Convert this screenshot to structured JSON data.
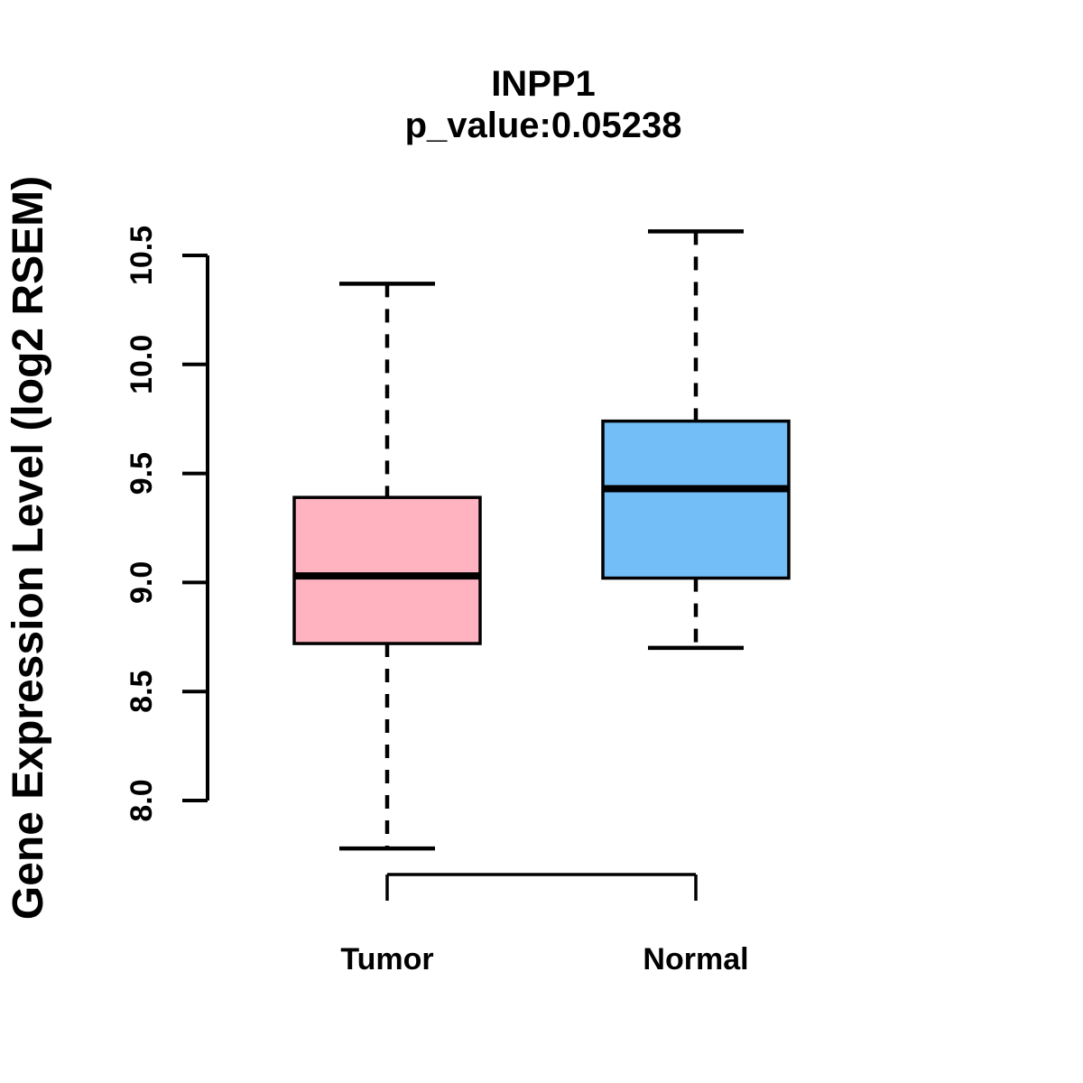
{
  "figure": {
    "title": "INPP1",
    "subtitle": "p_value:0.05238",
    "ylabel": "Gene Expression Level (log2 RSEM)"
  },
  "chart_data": {
    "type": "boxplot",
    "title": "INPP1",
    "subtitle": "p_value:0.05238",
    "ylabel": "Gene Expression Level (log2 RSEM)",
    "xlabel": "",
    "ylim": [
      8.0,
      10.5
    ],
    "yticks": [
      8.0,
      8.5,
      9.0,
      9.5,
      10.0,
      10.5
    ],
    "ytick_labels": [
      "8.0",
      "8.5",
      "9.0",
      "9.5",
      "10.0",
      "10.5"
    ],
    "categories": [
      "Tumor",
      "Normal"
    ],
    "series": [
      {
        "name": "Tumor",
        "lower_whisker": 7.78,
        "q1": 8.72,
        "median": 9.03,
        "q3": 9.39,
        "upper_whisker": 10.37,
        "fill": "#FFB3C1"
      },
      {
        "name": "Normal",
        "lower_whisker": 8.7,
        "q1": 9.02,
        "median": 9.43,
        "q3": 9.74,
        "upper_whisker": 10.61,
        "fill": "#73BEF7"
      }
    ],
    "colors": {
      "stroke": "#000000",
      "background": "#FFFFFF",
      "tumor_fill": "#FFB3C1",
      "normal_fill": "#73BEF7"
    },
    "legend": "none",
    "grid": false,
    "whisker_style": "dashed"
  }
}
